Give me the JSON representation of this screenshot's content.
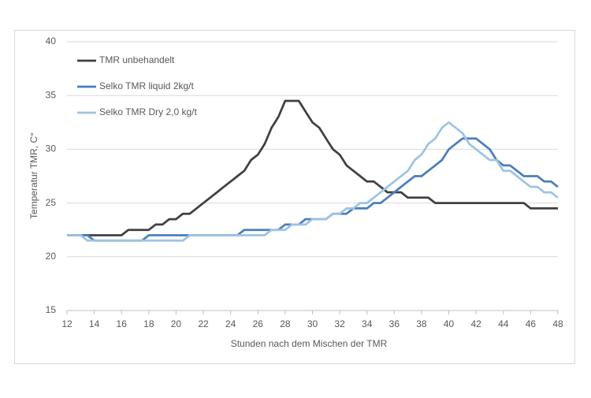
{
  "chart_data": {
    "type": "line",
    "x": [
      12,
      12.5,
      13,
      13.5,
      14,
      14.5,
      15,
      15.5,
      16,
      16.5,
      17,
      17.5,
      18,
      18.5,
      19,
      19.5,
      20,
      20.5,
      21,
      21.5,
      22,
      22.5,
      23,
      23.5,
      24,
      24.5,
      25,
      25.5,
      26,
      26.5,
      27,
      27.5,
      28,
      28.5,
      29,
      29.5,
      30,
      30.5,
      31,
      31.5,
      32,
      32.5,
      33,
      33.5,
      34,
      34.5,
      35,
      35.5,
      36,
      36.5,
      37,
      37.5,
      38,
      38.5,
      39,
      39.5,
      40,
      40.5,
      41,
      41.5,
      42,
      42.5,
      43,
      43.5,
      44,
      44.5,
      45,
      45.5,
      46,
      46.5,
      47,
      47.5,
      48
    ],
    "series": [
      {
        "name": "TMR unbehandelt",
        "color": "#404040",
        "values": [
          22,
          22,
          22,
          22,
          22,
          22,
          22,
          22,
          22,
          22.5,
          22.5,
          22.5,
          22.5,
          23,
          23,
          23.5,
          23.5,
          24,
          24,
          24.5,
          25,
          25.5,
          26,
          26.5,
          27,
          27.5,
          28,
          29,
          29.5,
          30.5,
          32,
          33,
          34.5,
          34.5,
          34.5,
          33.5,
          32.5,
          32,
          31,
          30,
          29.5,
          28.5,
          28,
          27.5,
          27,
          27,
          26.5,
          26,
          26,
          26,
          25.5,
          25.5,
          25.5,
          25.5,
          25,
          25,
          25,
          25,
          25,
          25,
          25,
          25,
          25,
          25,
          25,
          25,
          25,
          25,
          24.5,
          24.5,
          24.5,
          24.5,
          24.5
        ]
      },
      {
        "name": "Selko TMR liquid 2kg/t",
        "color": "#4a7ebb",
        "values": [
          22,
          22,
          22,
          22,
          21.5,
          21.5,
          21.5,
          21.5,
          21.5,
          21.5,
          21.5,
          21.5,
          22,
          22,
          22,
          22,
          22,
          22,
          22,
          22,
          22,
          22,
          22,
          22,
          22,
          22,
          22.5,
          22.5,
          22.5,
          22.5,
          22.5,
          22.5,
          23,
          23,
          23,
          23.5,
          23.5,
          23.5,
          23.5,
          24,
          24,
          24,
          24.5,
          24.5,
          24.5,
          25,
          25,
          25.5,
          26,
          26.5,
          27,
          27.5,
          27.5,
          28,
          28.5,
          29,
          30,
          30.5,
          31,
          31,
          31,
          30.5,
          30,
          29,
          28.5,
          28.5,
          28,
          27.5,
          27.5,
          27.5,
          27,
          27,
          26.5
        ]
      },
      {
        "name": "Selko TMR Dry 2,0 kg/t",
        "color": "#9dc3e6",
        "values": [
          22,
          22,
          22,
          21.5,
          21.5,
          21.5,
          21.5,
          21.5,
          21.5,
          21.5,
          21.5,
          21.5,
          21.5,
          21.5,
          21.5,
          21.5,
          21.5,
          21.5,
          22,
          22,
          22,
          22,
          22,
          22,
          22,
          22,
          22,
          22,
          22,
          22,
          22.5,
          22.5,
          22.5,
          23,
          23,
          23,
          23.5,
          23.5,
          23.5,
          24,
          24,
          24.5,
          24.5,
          25,
          25,
          25.5,
          26,
          26.5,
          27,
          27.5,
          28,
          29,
          29.5,
          30.5,
          31,
          32,
          32.5,
          32,
          31.5,
          30.5,
          30,
          29.5,
          29,
          29,
          28,
          28,
          27.5,
          27,
          26.5,
          26.5,
          26,
          26,
          25.5
        ]
      }
    ],
    "x_label": "Stunden nach dem Mischen der TMR",
    "y_label": "Temperatur TMR, C°",
    "xlim": [
      12,
      48
    ],
    "xticks": [
      12,
      14,
      16,
      18,
      20,
      22,
      24,
      26,
      28,
      30,
      32,
      34,
      36,
      38,
      40,
      42,
      44,
      46,
      48
    ],
    "ylim": [
      15,
      40
    ],
    "yticks": [
      15,
      20,
      25,
      30,
      35,
      40
    ],
    "grid": true,
    "legend": "upper left"
  }
}
